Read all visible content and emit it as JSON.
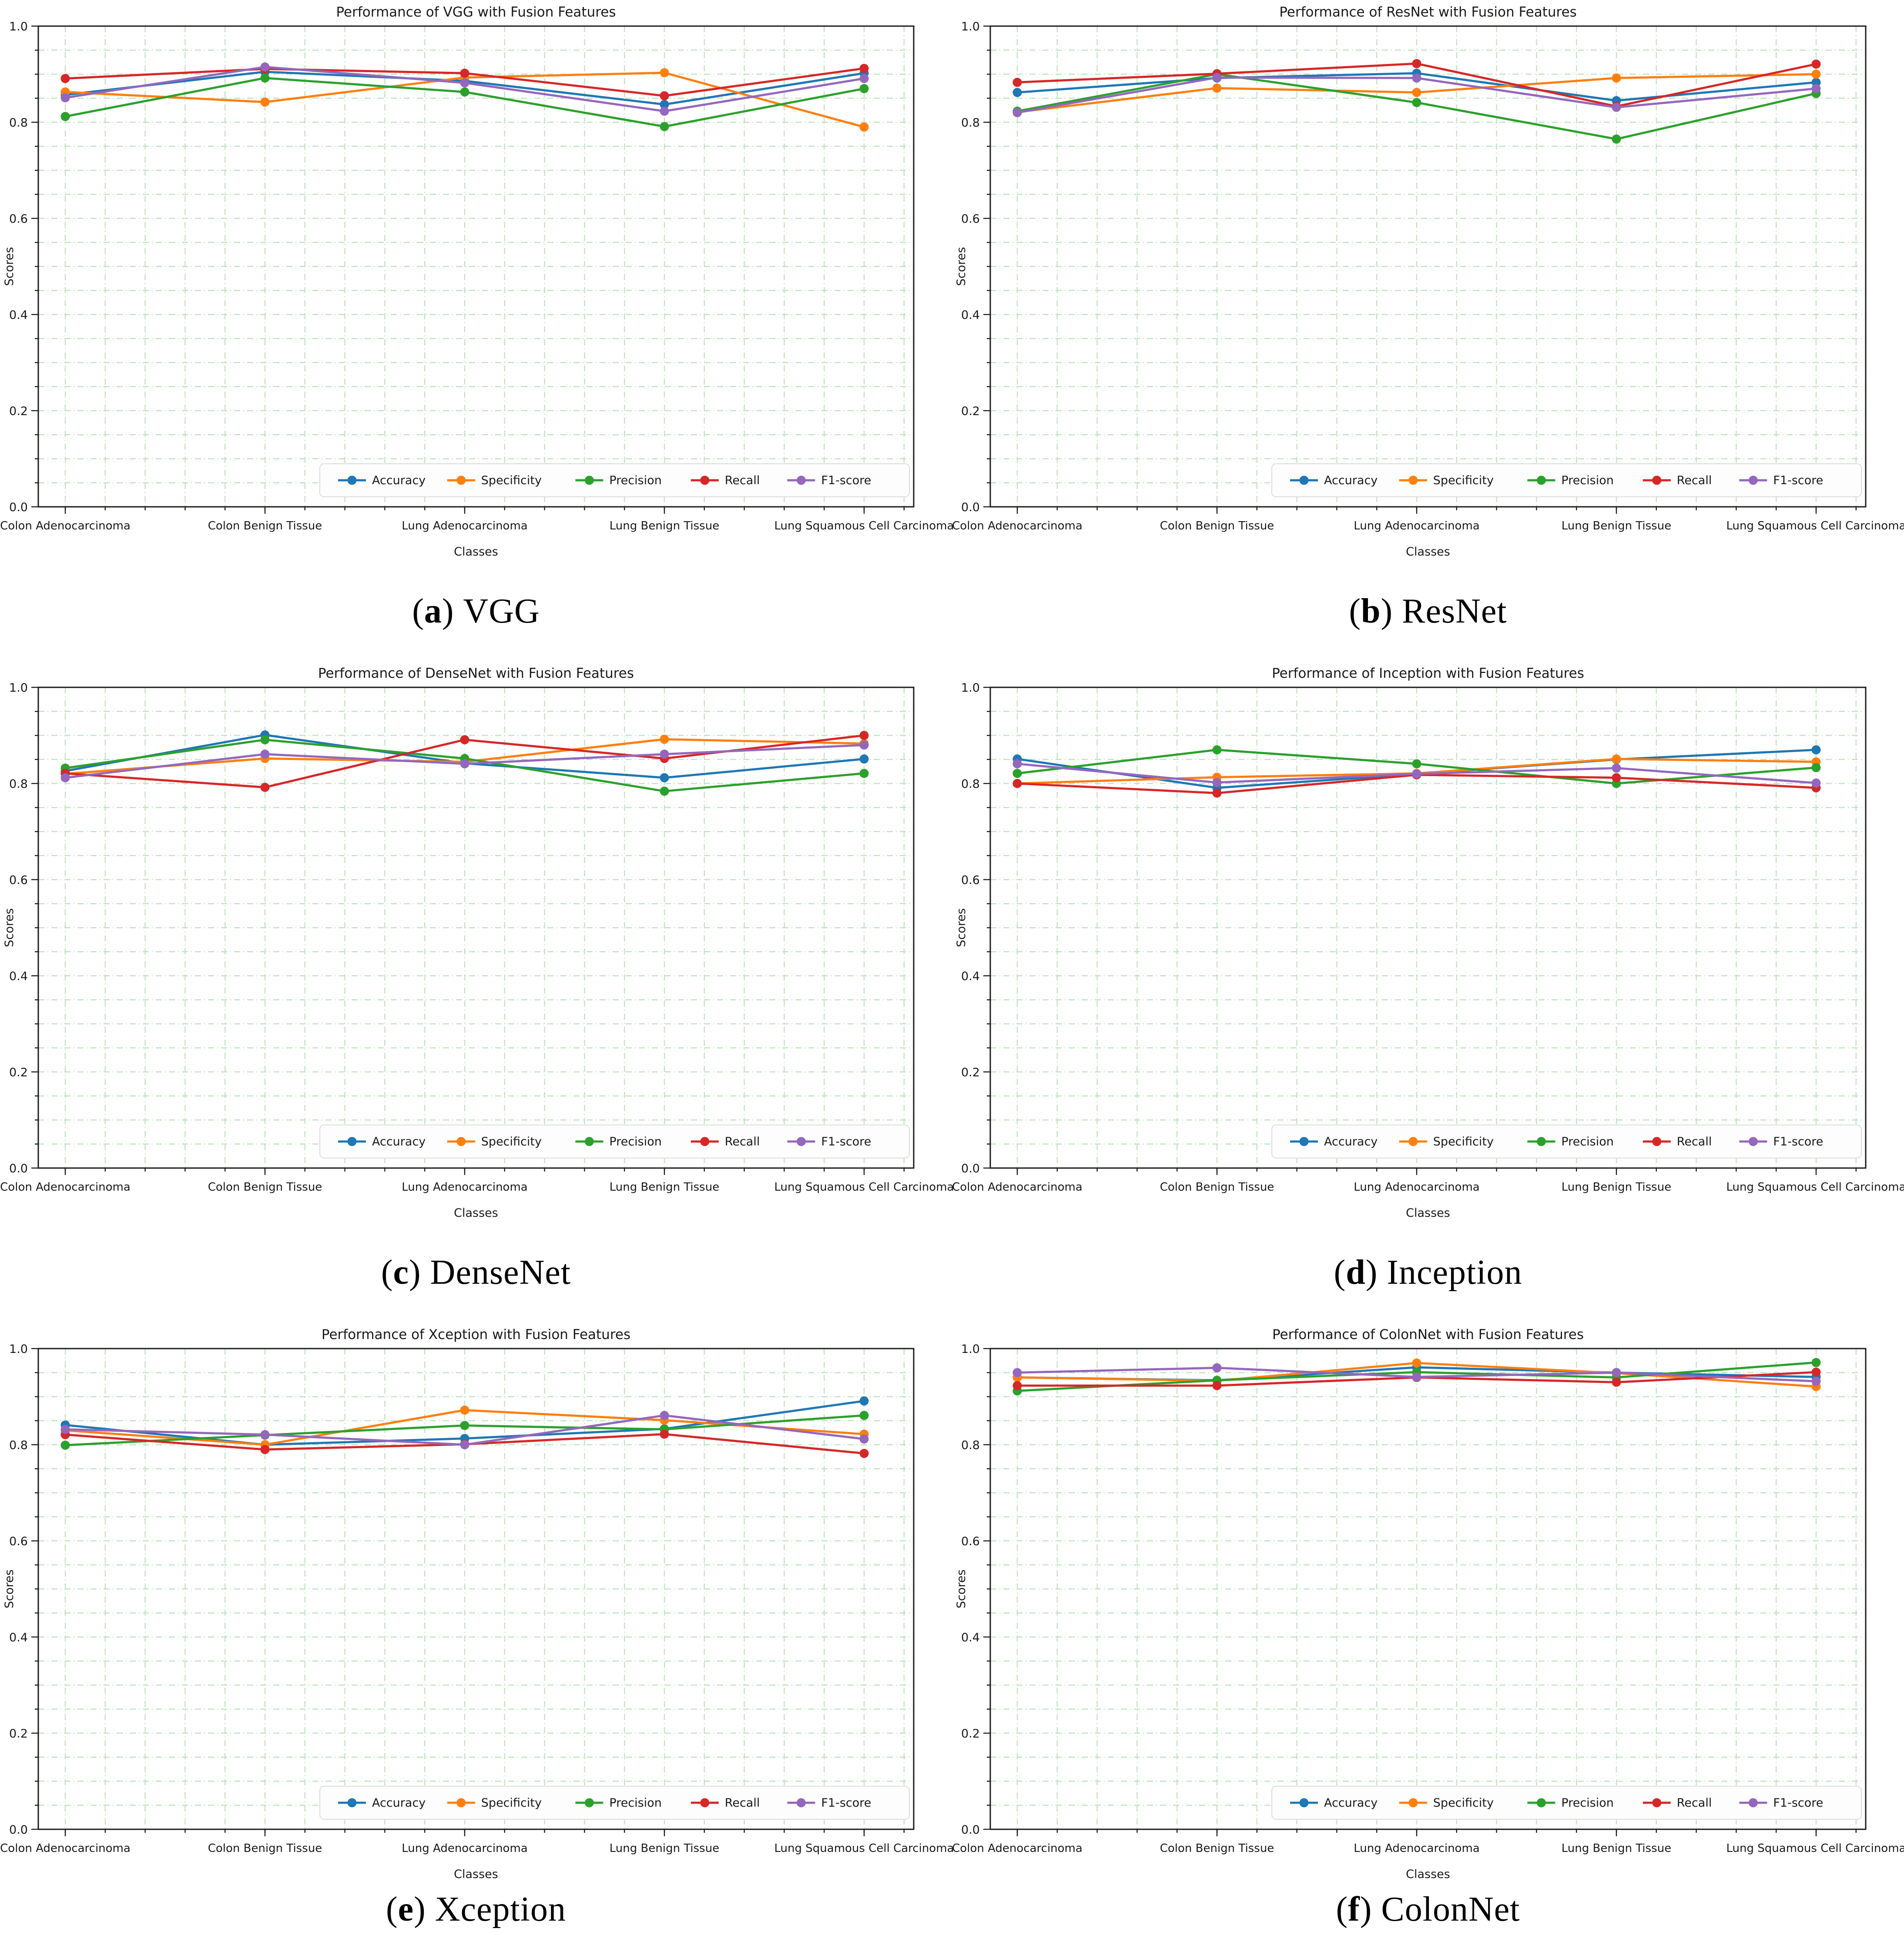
{
  "figure": {
    "xlabel": "Classes",
    "ylabel": "Scores",
    "classes": [
      "Colon Adenocarcinoma",
      "Colon Benign Tissue",
      "Lung Adenocarcinoma",
      "Lung Benign Tissue",
      "Lung Squamous Cell Carcinoma"
    ],
    "metrics": [
      {
        "name": "Accuracy",
        "color": "#1f77b4"
      },
      {
        "name": "Specificity",
        "color": "#ff7f0e"
      },
      {
        "name": "Precision",
        "color": "#2ca02c"
      },
      {
        "name": "Recall",
        "color": "#d62728"
      },
      {
        "name": "F1-score",
        "color": "#9467bd"
      }
    ],
    "ytick_labels": [
      "0.0",
      "0.2",
      "0.4",
      "0.6",
      "0.8",
      "1.0"
    ],
    "grid_color": "#bfe3bf",
    "spine_color": "#1a1a1a",
    "legend_bg": "#fdfdfd",
    "legend_border": "#dcdcdc"
  },
  "chart_data": [
    {
      "type": "line",
      "caption_letter": "a",
      "caption_label": "VGG",
      "title": "Performance of VGG with Fusion Features",
      "xlabel": "Classes",
      "ylabel": "Scores",
      "ylim": [
        0.0,
        1.0
      ],
      "categories": [
        "Colon Adenocarcinoma",
        "Colon Benign Tissue",
        "Lung Adenocarcinoma",
        "Lung Benign Tissue",
        "Lung Squamous Cell Carcinoma"
      ],
      "series": [
        {
          "name": "Accuracy",
          "values": [
            0.857,
            0.905,
            0.886,
            0.837,
            0.902
          ]
        },
        {
          "name": "Specificity",
          "values": [
            0.863,
            0.842,
            0.893,
            0.903,
            0.79
          ]
        },
        {
          "name": "Precision",
          "values": [
            0.812,
            0.892,
            0.863,
            0.791,
            0.87
          ]
        },
        {
          "name": "Recall",
          "values": [
            0.891,
            0.911,
            0.902,
            0.855,
            0.912
          ]
        },
        {
          "name": "F1-score",
          "values": [
            0.851,
            0.915,
            0.882,
            0.823,
            0.891
          ]
        }
      ]
    },
    {
      "type": "line",
      "caption_letter": "b",
      "caption_label": "ResNet",
      "title": "Performance of ResNet with Fusion Features",
      "xlabel": "Classes",
      "ylabel": "Scores",
      "ylim": [
        0.0,
        1.0
      ],
      "categories": [
        "Colon Adenocarcinoma",
        "Colon Benign Tissue",
        "Lung Adenocarcinoma",
        "Lung Benign Tissue",
        "Lung Squamous Cell Carcinoma"
      ],
      "series": [
        {
          "name": "Accuracy",
          "values": [
            0.862,
            0.892,
            0.902,
            0.845,
            0.883
          ]
        },
        {
          "name": "Specificity",
          "values": [
            0.821,
            0.871,
            0.862,
            0.892,
            0.9
          ]
        },
        {
          "name": "Precision",
          "values": [
            0.823,
            0.9,
            0.841,
            0.765,
            0.86
          ]
        },
        {
          "name": "Recall",
          "values": [
            0.883,
            0.901,
            0.922,
            0.833,
            0.921
          ]
        },
        {
          "name": "F1-score",
          "values": [
            0.82,
            0.893,
            0.892,
            0.831,
            0.87
          ]
        }
      ]
    },
    {
      "type": "line",
      "caption_letter": "c",
      "caption_label": "DenseNet",
      "title": "Performance of DenseNet with Fusion Features",
      "xlabel": "Classes",
      "ylabel": "Scores",
      "ylim": [
        0.0,
        1.0
      ],
      "categories": [
        "Colon Adenocarcinoma",
        "Colon Benign Tissue",
        "Lung Adenocarcinoma",
        "Lung Benign Tissue",
        "Lung Squamous Cell Carcinoma"
      ],
      "series": [
        {
          "name": "Accuracy",
          "values": [
            0.826,
            0.901,
            0.842,
            0.812,
            0.851
          ]
        },
        {
          "name": "Specificity",
          "values": [
            0.82,
            0.852,
            0.845,
            0.892,
            0.883
          ]
        },
        {
          "name": "Precision",
          "values": [
            0.832,
            0.891,
            0.852,
            0.784,
            0.821
          ]
        },
        {
          "name": "Recall",
          "values": [
            0.821,
            0.792,
            0.891,
            0.852,
            0.9
          ]
        },
        {
          "name": "F1-score",
          "values": [
            0.812,
            0.861,
            0.841,
            0.861,
            0.88
          ]
        }
      ]
    },
    {
      "type": "line",
      "caption_letter": "d",
      "caption_label": "Inception",
      "title": "Performance of Inception with Fusion Features",
      "xlabel": "Classes",
      "ylabel": "Scores",
      "ylim": [
        0.0,
        1.0
      ],
      "categories": [
        "Colon Adenocarcinoma",
        "Colon Benign Tissue",
        "Lung Adenocarcinoma",
        "Lung Benign Tissue",
        "Lung Squamous Cell Carcinoma"
      ],
      "series": [
        {
          "name": "Accuracy",
          "values": [
            0.851,
            0.791,
            0.82,
            0.85,
            0.87
          ]
        },
        {
          "name": "Specificity",
          "values": [
            0.8,
            0.813,
            0.821,
            0.851,
            0.845
          ]
        },
        {
          "name": "Precision",
          "values": [
            0.821,
            0.87,
            0.841,
            0.8,
            0.833
          ]
        },
        {
          "name": "Recall",
          "values": [
            0.8,
            0.78,
            0.818,
            0.812,
            0.791
          ]
        },
        {
          "name": "F1-score",
          "values": [
            0.841,
            0.802,
            0.82,
            0.832,
            0.801
          ]
        }
      ]
    },
    {
      "type": "line",
      "caption_letter": "e",
      "caption_label": "Xception",
      "title": "Performance of Xception with Fusion Features",
      "xlabel": "Classes",
      "ylabel": "Scores",
      "ylim": [
        0.0,
        1.0
      ],
      "categories": [
        "Colon Adenocarcinoma",
        "Colon Benign Tissue",
        "Lung Adenocarcinoma",
        "Lung Benign Tissue",
        "Lung Squamous Cell Carcinoma"
      ],
      "series": [
        {
          "name": "Accuracy",
          "values": [
            0.841,
            0.8,
            0.813,
            0.833,
            0.891
          ]
        },
        {
          "name": "Specificity",
          "values": [
            0.83,
            0.8,
            0.872,
            0.851,
            0.822
          ]
        },
        {
          "name": "Precision",
          "values": [
            0.799,
            0.82,
            0.84,
            0.832,
            0.861
          ]
        },
        {
          "name": "Recall",
          "values": [
            0.821,
            0.79,
            0.801,
            0.822,
            0.782
          ]
        },
        {
          "name": "F1-score",
          "values": [
            0.832,
            0.821,
            0.8,
            0.861,
            0.812
          ]
        }
      ]
    },
    {
      "type": "line",
      "caption_letter": "f",
      "caption_label": "ColonNet",
      "title": "Performance of ColonNet with Fusion Features",
      "xlabel": "Classes",
      "ylabel": "Scores",
      "ylim": [
        0.0,
        1.0
      ],
      "categories": [
        "Colon Adenocarcinoma",
        "Colon Benign Tissue",
        "Lung Adenocarcinoma",
        "Lung Benign Tissue",
        "Lung Squamous Cell Carcinoma"
      ],
      "series": [
        {
          "name": "Accuracy",
          "values": [
            0.94,
            0.934,
            0.961,
            0.95,
            0.941
          ]
        },
        {
          "name": "Specificity",
          "values": [
            0.94,
            0.933,
            0.97,
            0.949,
            0.921
          ]
        },
        {
          "name": "Precision",
          "values": [
            0.912,
            0.934,
            0.951,
            0.94,
            0.971
          ]
        },
        {
          "name": "Recall",
          "values": [
            0.923,
            0.923,
            0.94,
            0.93,
            0.951
          ]
        },
        {
          "name": "F1-score",
          "values": [
            0.95,
            0.96,
            0.941,
            0.95,
            0.932
          ]
        }
      ]
    }
  ]
}
